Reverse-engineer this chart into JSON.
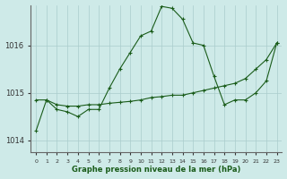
{
  "title": "Graphe pression niveau de la mer (hPa)",
  "background_color": "#ceeae8",
  "grid_color": "#aacccc",
  "line_color": "#1a5c1a",
  "x_labels": [
    "0",
    "1",
    "2",
    "3",
    "4",
    "5",
    "6",
    "7",
    "8",
    "9",
    "10",
    "11",
    "12",
    "13",
    "14",
    "15",
    "16",
    "17",
    "18",
    "19",
    "20",
    "21",
    "22",
    "23"
  ],
  "ylim": [
    1013.75,
    1016.85
  ],
  "yticks": [
    1014,
    1015,
    1016
  ],
  "series1": [
    1014.2,
    1014.85,
    1014.65,
    1014.6,
    1014.5,
    1014.65,
    1014.65,
    1015.1,
    1015.5,
    1015.85,
    1016.2,
    1016.3,
    1016.82,
    1016.78,
    1016.55,
    1016.05,
    1016.0,
    1015.35,
    1014.75,
    1014.85,
    1014.85,
    1015.0,
    1015.25,
    1016.05
  ],
  "series2": [
    1014.85,
    1014.85,
    1014.75,
    1014.72,
    1014.72,
    1014.75,
    1014.75,
    1014.78,
    1014.8,
    1014.82,
    1014.85,
    1014.9,
    1014.92,
    1014.95,
    1014.95,
    1015.0,
    1015.05,
    1015.1,
    1015.15,
    1015.2,
    1015.3,
    1015.5,
    1015.7,
    1016.05
  ]
}
